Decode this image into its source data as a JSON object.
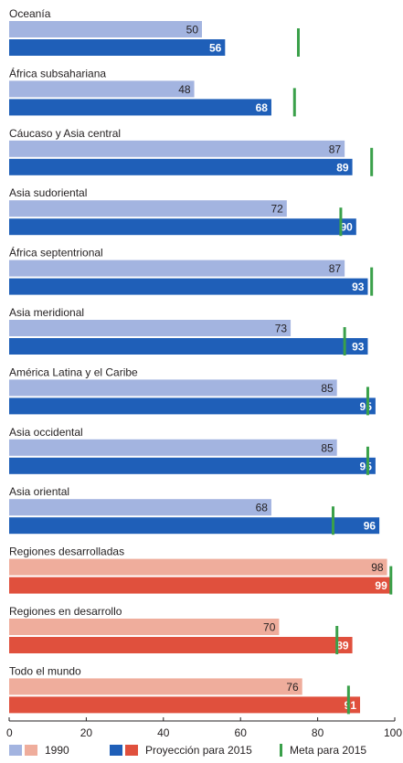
{
  "chart_data": {
    "type": "bar",
    "orientation": "horizontal",
    "categories": [
      "Oceanía",
      "África subsahariana",
      "Cáucaso y Asia central",
      "Asia sudoriental",
      "África septentrional",
      "Asia meridional",
      "América Latina y el Caribe",
      "Asia occidental",
      "Asia oriental",
      "Regiones desarrolladas",
      "Regiones en desarrollo",
      "Todo el mundo"
    ],
    "group": [
      "region",
      "region",
      "region",
      "region",
      "region",
      "region",
      "region",
      "region",
      "region",
      "aggregate",
      "aggregate",
      "aggregate"
    ],
    "series": [
      {
        "name": "1990",
        "values": [
          50,
          48,
          87,
          72,
          87,
          73,
          85,
          85,
          68,
          98,
          70,
          76
        ]
      },
      {
        "name": "Proyección para 2015",
        "values": [
          56,
          68,
          89,
          90,
          93,
          93,
          95,
          95,
          96,
          99,
          89,
          91
        ]
      }
    ],
    "goal": {
      "name": "Meta para 2015",
      "values": [
        75,
        74,
        94,
        86,
        94,
        87,
        93,
        93,
        84,
        99,
        85,
        88
      ]
    },
    "xlim": [
      0,
      100
    ],
    "xticks": [
      0,
      20,
      40,
      60,
      80,
      100
    ],
    "grid": false,
    "legend_position": "bottom",
    "colors": {
      "region_1990": "#a3b4e0",
      "region_2015": "#1f5fb8",
      "aggregate_1990": "#efad9c",
      "aggregate_2015": "#e0503d",
      "goal": "#3aa04a",
      "text_light_bg": "#231f20",
      "text_dark_bg": "#ffffff"
    }
  }
}
